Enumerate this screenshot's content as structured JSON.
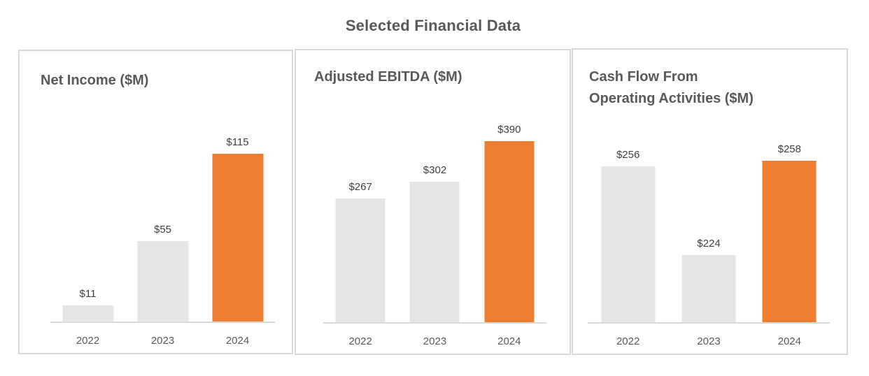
{
  "page_title": "Selected Financial Data",
  "colors": {
    "accent_orange": "#ED7D31",
    "bar_gray": "#E6E5E5",
    "axis_line": "#D9D9D9",
    "panel_border": "#D9D9D9",
    "title_text": "#595959",
    "data_label_text": "#404040",
    "category_label_text": "#595959"
  },
  "chart_data": [
    {
      "type": "bar",
      "title": "Net Income ($M)",
      "categories": [
        "2022",
        "2023",
        "2024"
      ],
      "values": [
        11,
        55,
        115
      ],
      "data_labels": [
        "$11",
        "$55",
        "$115"
      ],
      "ylim": [
        0,
        128
      ],
      "bar_colors": [
        "#E6E5E5",
        "#E6E5E5",
        "#ED7D31"
      ],
      "grid": false,
      "legend": "none",
      "data_label_position": "outside-end"
    },
    {
      "type": "bar",
      "title": "Adjusted EBITDA ($M)",
      "categories": [
        "2022",
        "2023",
        "2024"
      ],
      "values": [
        267,
        302,
        390
      ],
      "data_labels": [
        "$267",
        "$302",
        "$390"
      ],
      "ylim": [
        0,
        402
      ],
      "bar_colors": [
        "#E6E5E5",
        "#E6E5E5",
        "#ED7D31"
      ],
      "grid": false,
      "legend": "none",
      "data_label_position": "outside-end"
    },
    {
      "type": "bar",
      "title": "Cash Flow From\nOperating Activities ($M)",
      "categories": [
        "2022",
        "2023",
        "2024"
      ],
      "values": [
        256,
        224,
        258
      ],
      "data_labels": [
        "$256",
        "$224",
        "$258"
      ],
      "ylim": [
        200,
        267
      ],
      "bar_colors": [
        "#E6E5E5",
        "#E6E5E5",
        "#ED7D31"
      ],
      "grid": false,
      "legend": "none",
      "data_label_position": "outside-end"
    }
  ]
}
